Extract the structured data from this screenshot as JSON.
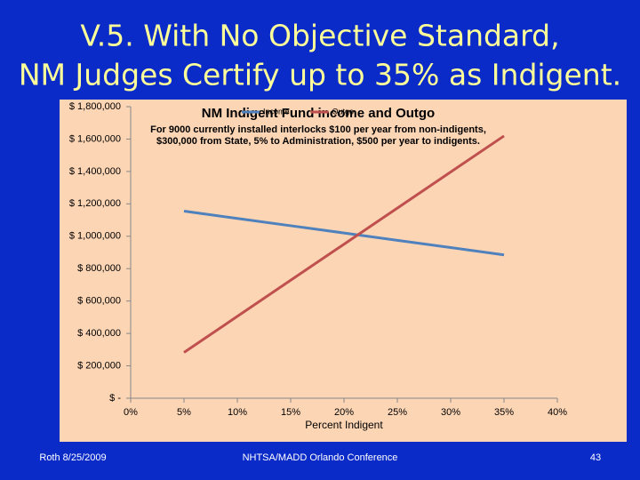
{
  "slide": {
    "title_lines": [
      "V.5.  With No Objective Standard,",
      "NM Judges Certify up to 35% as Indigent."
    ],
    "footer_left": "Roth 8/25/2009",
    "footer_center": "NHTSA/MADD Orlando Conference",
    "page_number": "43"
  },
  "chart_data": {
    "type": "line",
    "title": "NM Indigent Fund income and Outgo",
    "subtitle": [
      "For 9000 currently installed interlocks $100 per year from non-indigents,",
      "$300,000 from State, 5% to Administration, $500 per year to indigents."
    ],
    "x_label": "Percent Indigent",
    "x": [
      5,
      10,
      15,
      20,
      25,
      30,
      35
    ],
    "series": [
      {
        "name": "Income",
        "color": "#4f81bd",
        "values": [
          1155000,
          1110000,
          1065000,
          1020000,
          975000,
          930000,
          885000
        ]
      },
      {
        "name": "Outgo",
        "color": "#c0504d",
        "values": [
          282750,
          505500,
          728250,
          951000,
          1173750,
          1396500,
          1619250
        ]
      }
    ],
    "xlim": [
      0,
      40
    ],
    "xticks": [
      {
        "value": 0,
        "label": "0%"
      },
      {
        "value": 5,
        "label": "5%"
      },
      {
        "value": 10,
        "label": "10%"
      },
      {
        "value": 15,
        "label": "15%"
      },
      {
        "value": 20,
        "label": "20%"
      },
      {
        "value": 25,
        "label": "25%"
      },
      {
        "value": 30,
        "label": "30%"
      },
      {
        "value": 35,
        "label": "35%"
      },
      {
        "value": 40,
        "label": "40%"
      }
    ],
    "ylim": [
      0,
      1800000
    ],
    "yticks": [
      {
        "value": 0,
        "label": "$ -"
      },
      {
        "value": 200000,
        "label": "$ 200,000"
      },
      {
        "value": 400000,
        "label": "$ 400,000"
      },
      {
        "value": 600000,
        "label": "$ 600,000"
      },
      {
        "value": 800000,
        "label": "$ 800,000"
      },
      {
        "value": 1000000,
        "label": "$ 1,000,000"
      },
      {
        "value": 1200000,
        "label": "$ 1,200,000"
      },
      {
        "value": 1400000,
        "label": "$ 1,400,000"
      },
      {
        "value": 1600000,
        "label": "$ 1,600,000"
      },
      {
        "value": 1800000,
        "label": "$ 1,800,000"
      }
    ],
    "grid": false,
    "legend": "top"
  }
}
